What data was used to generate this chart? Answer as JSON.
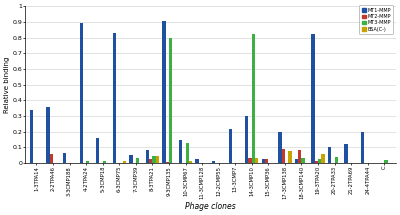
{
  "categories": [
    "1-3TPA14",
    "2-2TPA46",
    "3-3CMP188",
    "4-2TPA24",
    "5-3CMP18",
    "6-3CMP75",
    "7-3CMP39",
    "8-3TPA21",
    "9-3CMP135",
    "10-3CMP67",
    "11-3CMP128",
    "12-2CMP55",
    "13-3CMP7",
    "14-3CMP10",
    "15-3CMP36",
    "17-3CMP138",
    "18-3CMP140",
    "19-3TPA20",
    "20-2TPA33",
    "21-2TPA69",
    "24-4TPA44",
    "C"
  ],
  "MT1": [
    0.34,
    0.355,
    0.065,
    0.89,
    0.16,
    0.83,
    0.05,
    0.08,
    0.905,
    0.145,
    0.025,
    0.015,
    0.22,
    0.3,
    0.025,
    0.2,
    0.025,
    0.82,
    0.105,
    0.12,
    0.2,
    0.0
  ],
  "MT2": [
    0.0,
    0.055,
    0.0,
    0.0,
    0.0,
    0.0,
    0.0,
    0.025,
    0.005,
    0.0,
    0.0,
    0.0,
    0.0,
    0.035,
    0.025,
    0.09,
    0.08,
    0.01,
    0.0,
    0.0,
    0.0,
    0.0
  ],
  "MT3": [
    0.0,
    0.0,
    0.0,
    0.01,
    0.01,
    0.0,
    0.035,
    0.045,
    0.8,
    0.13,
    0.0,
    0.0,
    0.0,
    0.82,
    0.0,
    0.0,
    0.035,
    0.025,
    0.04,
    0.0,
    0.0,
    0.02
  ],
  "BSA": [
    0.0,
    0.0,
    0.0,
    0.0,
    0.0,
    0.01,
    0.0,
    0.045,
    0.0,
    0.01,
    0.0,
    0.0,
    0.0,
    0.03,
    0.0,
    0.075,
    0.0,
    0.055,
    0.0,
    0.0,
    0.0,
    0.0
  ],
  "MT1_color": "#2050A0",
  "MT2_color": "#C0392B",
  "MT3_color": "#3CB043",
  "BSA_color": "#C8A200",
  "ylabel": "Relative binding",
  "xlabel": "Phage clones",
  "ylim": [
    0,
    1.0
  ],
  "yticks": [
    0,
    0.1,
    0.2,
    0.3,
    0.4,
    0.5,
    0.6,
    0.7,
    0.8,
    0.9,
    1
  ],
  "legend_labels": [
    "MT1-MMP",
    "MT2-MMP",
    "MT3-MMP",
    "BSA(C-)"
  ]
}
